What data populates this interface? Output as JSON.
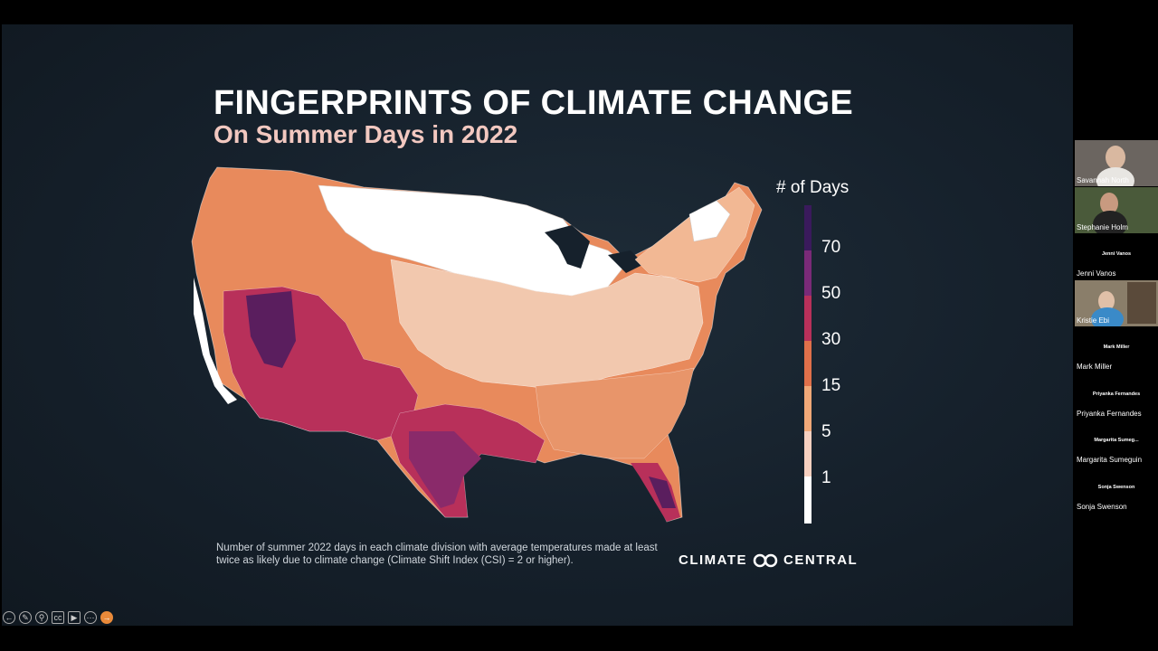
{
  "slide": {
    "title": "FINGERPRINTS OF CLIMATE CHANGE",
    "subtitle": "On Summer Days in 2022",
    "caption": "Number of summer 2022 days in each climate division with average temperatures made at least twice as likely due to climate change (Climate Shift Index (CSI) = 2 or higher).",
    "brand_left": "CLIMATE",
    "brand_right": "CENTRAL"
  },
  "legend": {
    "title": "# of Days",
    "ticks": [
      "70",
      "50",
      "30",
      "15",
      "5",
      "1"
    ],
    "colors": [
      "#3a1a5c",
      "#7a2a78",
      "#b8305a",
      "#e0704a",
      "#f0a878",
      "#f6d0c0",
      "#ffffff"
    ]
  },
  "map_colors": {
    "white": "#ffffff",
    "very_light": "#f6d6c8",
    "light": "#f2b894",
    "medium": "#e88a5c",
    "dark_orange": "#e0704a",
    "crimson": "#b8305a",
    "magenta": "#8a2a6a",
    "purple": "#5a1e5e"
  },
  "participants": [
    {
      "name": "Savannah North",
      "video": true
    },
    {
      "name": "Stephanie Holm",
      "video": true
    },
    {
      "name": "Jenni Vanos",
      "video": false,
      "label": "Jenni Vanos"
    },
    {
      "name": "Kristie Ebi",
      "video": true
    },
    {
      "name": "Mark Miller",
      "video": false,
      "label": "Mark Miller"
    },
    {
      "name": "Priyanka Fernandes",
      "video": false,
      "label": "Priyanka Fernandes"
    },
    {
      "name": "Margarita Sumeguin",
      "video": false,
      "label": "Margarita Sumeg..."
    },
    {
      "name": "Sonja Swenson",
      "video": false,
      "label": "Sonja Swenson"
    }
  ],
  "toolbar": [
    "back",
    "pen",
    "zoom",
    "cc",
    "video",
    "more",
    "next"
  ]
}
